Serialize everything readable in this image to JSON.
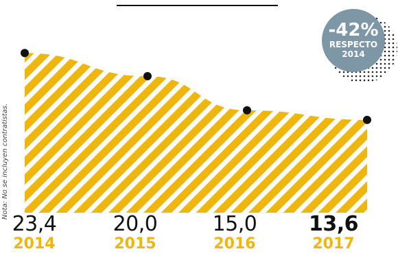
{
  "chart_data": {
    "type": "area",
    "categories": [
      "2014",
      "2015",
      "2016",
      "2017"
    ],
    "values": [
      23.4,
      20.0,
      15.0,
      13.6
    ],
    "value_labels": [
      "23,4",
      "20,0",
      "15,0",
      "13,6"
    ],
    "highlight_index": 3,
    "note": "Nota: No se incluyen contratistas.",
    "badge": {
      "percent": "-42%",
      "line1": "RESPECTO",
      "line2": "2014"
    },
    "colors": {
      "area": "#efb60e",
      "stripe": "#ffffff",
      "point": "#111111",
      "badge": "#7e97a6",
      "year_text": "#efb60e"
    }
  }
}
